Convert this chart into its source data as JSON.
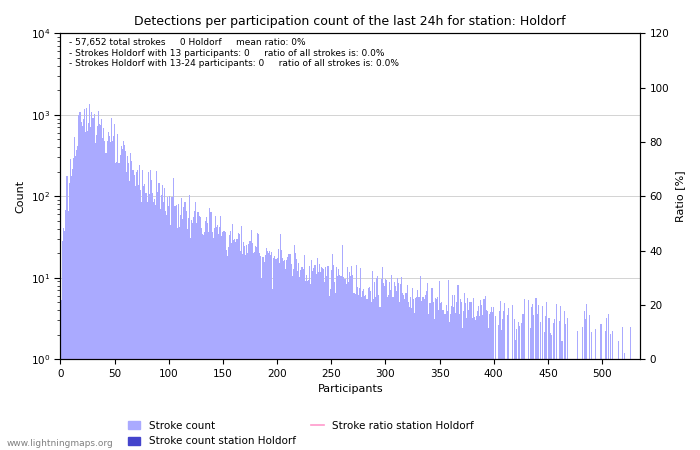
{
  "title": "Detections per participation count of the last 24h for station: Holdorf",
  "xlabel": "Participants",
  "ylabel_left": "Count",
  "ylabel_right": "Ratio [%]",
  "annotation_lines": [
    "57,652 total strokes     0 Holdorf     mean ratio: 0%",
    "Strokes Holdorf with 13 participants: 0     ratio of all strokes is: 0.0%",
    "Strokes Holdorf with 13-24 participants: 0     ratio of all strokes is: 0.0%"
  ],
  "bar_color": "#aaaaff",
  "station_bar_color": "#4444cc",
  "ratio_line_color": "#ff99cc",
  "watermark": "www.lightningmaps.org",
  "legend_entries": [
    "Stroke count",
    "Stroke count station Holdorf",
    "Stroke ratio station Holdorf"
  ],
  "x_max": 530,
  "y_left_min": 1,
  "y_left_max": 10000,
  "y_right_min": 0,
  "y_right_max": 120,
  "yticks_right": [
    0,
    20,
    40,
    60,
    80,
    100,
    120
  ],
  "xticks": [
    0,
    50,
    100,
    150,
    200,
    250,
    300,
    350,
    400,
    450,
    500
  ]
}
